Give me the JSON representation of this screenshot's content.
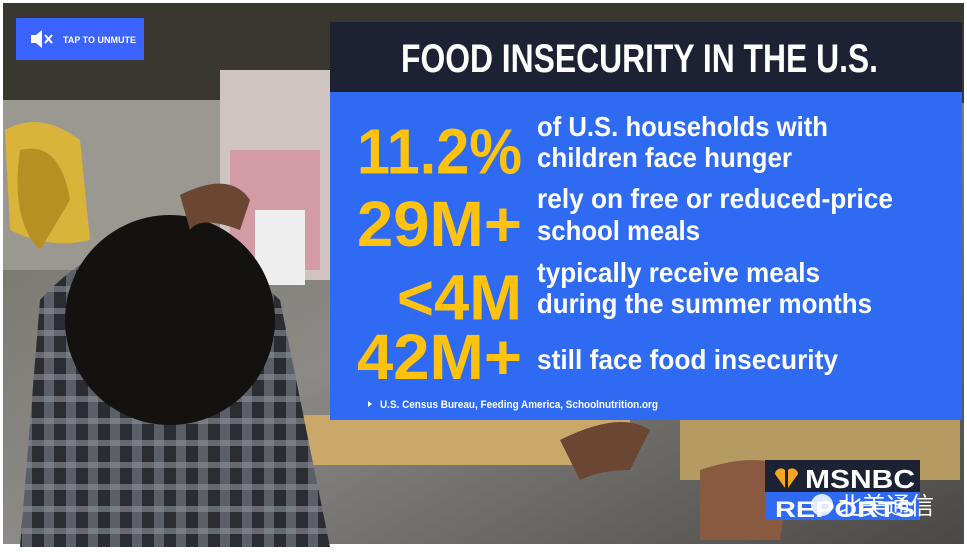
{
  "player": {
    "unmute_label": "TAP TO UNMUTE"
  },
  "graphic": {
    "title": "FOOD INSECURITY IN THE U.S.",
    "stats": [
      {
        "figure": "11.2%",
        "lines": [
          "of U.S. households with",
          "children face hunger"
        ]
      },
      {
        "figure": "29M+",
        "lines": [
          "rely on free or reduced-price",
          "school meals"
        ]
      },
      {
        "figure": "<4M",
        "lines": [
          "typically receive meals",
          "during the summer months"
        ]
      },
      {
        "figure": "42M+",
        "lines": [
          "still face food insecurity"
        ]
      }
    ],
    "source": "U.S. Census Bureau, Feeding America, Schoolnutrition.org"
  },
  "logo": {
    "network": "MSNBC",
    "show": "REPORTS"
  },
  "watermark": "北美通信"
}
